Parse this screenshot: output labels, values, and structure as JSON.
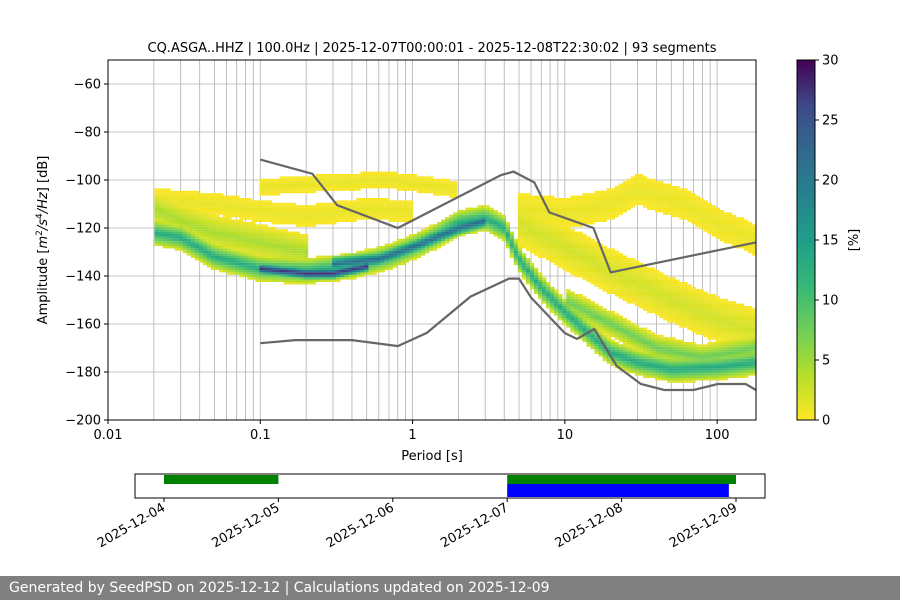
{
  "chart_data": [
    {
      "type": "heatmap",
      "title": "CQ.ASGA..HHZ | 100.0Hz | 2025-12-07T00:00:01 - 2025-12-08T22:30:02 | 93 segments",
      "xlabel": "Period [s]",
      "ylabel_parts": [
        "Amplitude [",
        "m",
        "2",
        "/",
        "s",
        "4",
        "/",
        "Hz",
        "] [dB]"
      ],
      "x_scale": "log",
      "xlim": [
        0.01,
        180
      ],
      "ylim": [
        -200,
        -50
      ],
      "x_ticks": [
        {
          "v": 0.01,
          "label": "0.01"
        },
        {
          "v": 0.1,
          "label": "0.1"
        },
        {
          "v": 1,
          "label": "1"
        },
        {
          "v": 10,
          "label": "10"
        },
        {
          "v": 100,
          "label": "100"
        }
      ],
      "y_ticks": [
        {
          "v": -60,
          "label": "−60"
        },
        {
          "v": -80,
          "label": "−80"
        },
        {
          "v": -100,
          "label": "−100"
        },
        {
          "v": -120,
          "label": "−120"
        },
        {
          "v": -140,
          "label": "−140"
        },
        {
          "v": -160,
          "label": "−160"
        },
        {
          "v": -180,
          "label": "−180"
        },
        {
          "v": -200,
          "label": "−200"
        }
      ],
      "grid": true,
      "colorbar": {
        "label": "[%]",
        "range": [
          0,
          30
        ],
        "ticks": [
          {
            "v": 0,
            "label": "0"
          },
          {
            "v": 5,
            "label": "5"
          },
          {
            "v": 10,
            "label": "10"
          },
          {
            "v": 15,
            "label": "15"
          },
          {
            "v": 20,
            "label": "20"
          },
          {
            "v": 25,
            "label": "25"
          },
          {
            "v": 30,
            "label": "30"
          }
        ],
        "colormap": "viridis_r"
      },
      "probability_bands": [
        {
          "period_range": [
            0.02,
            180
          ],
          "center": [
            [
              0.02,
              -122
            ],
            [
              0.03,
              -124
            ],
            [
              0.05,
              -132
            ],
            [
              0.1,
              -137
            ],
            [
              0.2,
              -138
            ],
            [
              0.4,
              -136
            ],
            [
              0.7,
              -132
            ],
            [
              1.2,
              -126
            ],
            [
              2,
              -118
            ],
            [
              3,
              -116
            ],
            [
              4,
              -120
            ],
            [
              5,
              -133
            ],
            [
              7,
              -145
            ],
            [
              10,
              -155
            ],
            [
              15,
              -165
            ],
            [
              20,
              -172
            ],
            [
              30,
              -176
            ],
            [
              50,
              -179
            ],
            [
              100,
              -178
            ],
            [
              180,
              -176
            ]
          ],
          "spread_db": 5,
          "level": 12
        },
        {
          "period_range": [
            0.1,
            0.5
          ],
          "center": [
            [
              0.1,
              -137
            ],
            [
              0.2,
              -139
            ],
            [
              0.3,
              -139
            ],
            [
              0.5,
              -136
            ]
          ],
          "spread_db": 2,
          "level": 26
        },
        {
          "period_range": [
            0.3,
            3
          ],
          "center": [
            [
              0.3,
              -135
            ],
            [
              0.6,
              -133
            ],
            [
              1,
              -128
            ],
            [
              2,
              -120
            ],
            [
              3,
              -117
            ]
          ],
          "spread_db": 3,
          "level": 20
        },
        {
          "period_range": [
            0.02,
            0.2
          ],
          "center": [
            [
              0.02,
              -112
            ],
            [
              0.03,
              -117
            ],
            [
              0.05,
              -122
            ],
            [
              0.1,
              -126
            ],
            [
              0.2,
              -130
            ]
          ],
          "spread_db": 7,
          "level": 4
        },
        {
          "period_range": [
            0.02,
            1
          ],
          "center": [
            [
              0.02,
              -108
            ],
            [
              0.05,
              -110
            ],
            [
              0.1,
              -113
            ],
            [
              0.2,
              -115
            ],
            [
              0.5,
              -112
            ],
            [
              1,
              -113
            ]
          ],
          "spread_db": 4,
          "level": 1
        },
        {
          "period_range": [
            0.1,
            2
          ],
          "center": [
            [
              0.1,
              -103
            ],
            [
              0.3,
              -101
            ],
            [
              0.7,
              -100
            ],
            [
              1.2,
              -102
            ],
            [
              2,
              -104
            ]
          ],
          "spread_db": 3,
          "level": 1
        },
        {
          "period_range": [
            5,
            180
          ],
          "center": [
            [
              5,
              -112
            ],
            [
              10,
              -114
            ],
            [
              20,
              -110
            ],
            [
              30,
              -104
            ],
            [
              60,
              -110
            ],
            [
              100,
              -118
            ],
            [
              180,
              -125
            ]
          ],
          "spread_db": 6,
          "level": 1
        },
        {
          "period_range": [
            5,
            180
          ],
          "center": [
            [
              5,
              -118
            ],
            [
              10,
              -128
            ],
            [
              20,
              -138
            ],
            [
              50,
              -150
            ],
            [
              100,
              -158
            ],
            [
              180,
              -163
            ]
          ],
          "spread_db": 9,
          "level": 2
        },
        {
          "period_range": [
            10,
            180
          ],
          "center": [
            [
              10,
              -150
            ],
            [
              20,
              -160
            ],
            [
              40,
              -170
            ],
            [
              80,
              -174
            ],
            [
              180,
              -170
            ]
          ],
          "spread_db": 5,
          "level": 7
        }
      ],
      "nhnm": {
        "name": "NHNM",
        "period": [
          0.1,
          0.22,
          0.32,
          0.8,
          3.8,
          4.6,
          6.3,
          7.9,
          15.4,
          20,
          354.8
        ],
        "db": [
          -91.5,
          -97.4,
          -110.5,
          -120,
          -98,
          -96.5,
          -101,
          -113.5,
          -120,
          -138.5,
          -126
        ]
      },
      "nlnm": {
        "name": "NLNM",
        "period": [
          0.1,
          0.17,
          0.4,
          0.8,
          1.24,
          2.4,
          4.3,
          5,
          6,
          10,
          12,
          15.6,
          21.9,
          31.6,
          45,
          70,
          101,
          154,
          328
        ],
        "db": [
          -168,
          -166.7,
          -166.7,
          -169.2,
          -163.7,
          -148.6,
          -141.1,
          -141.1,
          -149,
          -163.8,
          -166.2,
          -162.1,
          -177.5,
          -185,
          -187.5,
          -187.5,
          -185,
          -185,
          -187.5
        ]
      }
    },
    {
      "type": "timeline",
      "x_ticks": [
        "2025-12-04",
        "2025-12-05",
        "2025-12-06",
        "2025-12-07",
        "2025-12-08",
        "2025-12-09"
      ],
      "available_data": [
        [
          "2025-12-04",
          "2025-12-05"
        ],
        [
          "2025-12-07",
          "2025-12-09"
        ]
      ],
      "used_data": [
        [
          "2025-12-07",
          "2025-12-08T22:30:02"
        ]
      ],
      "colors": {
        "available": "#008000",
        "used": "#0000ff"
      }
    }
  ],
  "footer": "Generated by SeedPSD on 2025-12-12 | Calculations updated on 2025-12-09"
}
